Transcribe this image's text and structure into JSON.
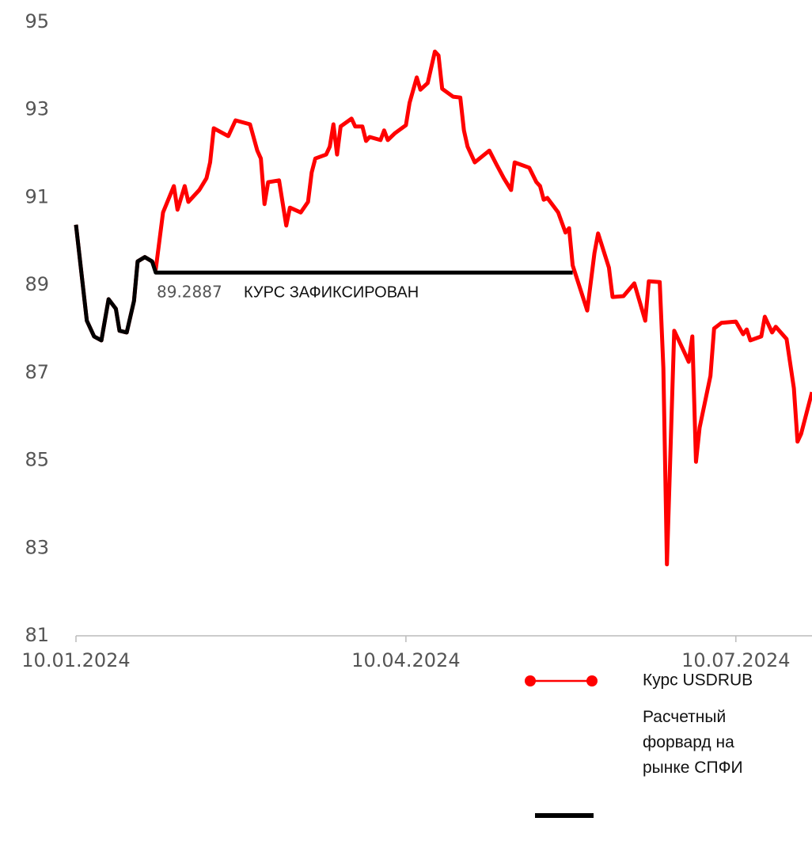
{
  "chart_data": {
    "type": "line",
    "x": [
      "2024-01-10",
      "2024-01-13",
      "2024-01-15",
      "2024-01-17",
      "2024-01-19",
      "2024-01-21",
      "2024-01-22",
      "2024-01-24",
      "2024-01-26",
      "2024-01-27",
      "2024-01-29",
      "2024-01-31",
      "2024-02-01",
      "2024-02-03",
      "2024-02-06",
      "2024-02-07",
      "2024-02-09",
      "2024-02-10",
      "2024-02-13",
      "2024-02-15",
      "2024-02-16",
      "2024-02-17",
      "2024-02-21",
      "2024-02-23",
      "2024-02-27",
      "2024-02-29",
      "2024-03-01",
      "2024-03-02",
      "2024-03-03",
      "2024-03-06",
      "2024-03-08",
      "2024-03-09",
      "2024-03-12",
      "2024-03-14",
      "2024-03-15",
      "2024-03-16",
      "2024-03-19",
      "2024-03-20",
      "2024-03-21",
      "2024-03-22",
      "2024-03-23",
      "2024-03-26",
      "2024-03-27",
      "2024-03-29",
      "2024-03-30",
      "2024-03-31",
      "2024-04-03",
      "2024-04-04",
      "2024-04-05",
      "2024-04-07",
      "2024-04-10",
      "2024-04-11",
      "2024-04-13",
      "2024-04-14",
      "2024-04-16",
      "2024-04-18",
      "2024-04-19",
      "2024-04-20",
      "2024-04-23",
      "2024-04-25",
      "2024-04-26",
      "2024-04-27",
      "2024-04-29",
      "2024-05-03",
      "2024-05-05",
      "2024-05-07",
      "2024-05-09",
      "2024-05-10",
      "2024-05-14",
      "2024-05-16",
      "2024-05-17",
      "2024-05-18",
      "2024-05-19",
      "2024-05-22",
      "2024-05-24",
      "2024-05-25",
      "2024-05-26",
      "2024-05-30",
      "2024-06-01",
      "2024-06-02",
      "2024-06-05",
      "2024-06-06",
      "2024-06-09",
      "2024-06-12",
      "2024-06-15",
      "2024-06-16",
      "2024-06-19",
      "2024-06-20",
      "2024-06-21",
      "2024-06-23",
      "2024-06-26",
      "2024-06-27",
      "2024-06-28",
      "2024-06-29",
      "2024-06-30",
      "2024-07-03",
      "2024-07-04",
      "2024-07-06",
      "2024-07-10",
      "2024-07-12",
      "2024-07-13",
      "2024-07-14",
      "2024-07-17",
      "2024-07-18",
      "2024-07-20",
      "2024-07-21",
      "2024-07-24",
      "2024-07-26",
      "2024-07-27",
      "2024-07-28",
      "2024-07-31"
    ],
    "series": [
      {
        "name": "Курс USDRUB",
        "color": "#ff0000",
        "values": [
          90.38,
          88.19,
          87.83,
          87.74,
          88.68,
          88.46,
          87.96,
          87.92,
          88.64,
          89.54,
          89.64,
          89.54,
          89.36,
          90.66,
          91.26,
          90.72,
          91.26,
          90.9,
          91.17,
          91.44,
          91.8,
          92.58,
          92.4,
          92.76,
          92.67,
          92.07,
          91.89,
          90.85,
          91.35,
          91.39,
          90.36,
          90.77,
          90.66,
          90.9,
          91.57,
          91.89,
          91.98,
          92.16,
          92.67,
          91.98,
          92.62,
          92.8,
          92.62,
          92.62,
          92.29,
          92.38,
          92.31,
          92.53,
          92.31,
          92.47,
          92.65,
          93.16,
          93.74,
          93.46,
          93.61,
          94.33,
          94.24,
          93.48,
          93.3,
          93.28,
          92.53,
          92.16,
          91.8,
          92.07,
          91.75,
          91.44,
          91.17,
          91.8,
          91.68,
          91.35,
          91.26,
          90.95,
          90.99,
          90.66,
          90.2,
          90.3,
          89.45,
          88.42,
          89.73,
          90.18,
          89.4,
          88.73,
          88.75,
          89.04,
          88.19,
          89.09,
          89.07,
          87.11,
          82.63,
          87.96,
          87.43,
          87.25,
          87.83,
          84.97,
          85.75,
          86.93,
          88.01,
          88.14,
          88.17,
          87.88,
          87.99,
          87.74,
          87.83,
          88.28,
          87.92,
          88.05,
          87.77,
          86.65,
          85.43,
          85.61,
          86.56
        ]
      },
      {
        "name": "Расчетный форвард на рынке СПФИ",
        "color": "#000000",
        "values": [
          90.38,
          88.19,
          87.83,
          87.74,
          88.68,
          88.46,
          87.96,
          87.92,
          88.64,
          89.54,
          89.64,
          89.54,
          89.2887,
          89.2887,
          89.2887,
          89.2887,
          89.2887,
          89.2887,
          89.2887,
          89.2887,
          89.2887,
          89.2887,
          89.2887,
          89.2887,
          89.2887,
          89.2887,
          89.2887,
          89.2887,
          89.2887,
          89.2887,
          89.2887,
          89.2887,
          89.2887,
          89.2887,
          89.2887,
          89.2887,
          89.2887,
          89.2887,
          89.2887,
          89.2887,
          89.2887,
          89.2887,
          89.2887,
          89.2887,
          89.2887,
          89.2887,
          89.2887,
          89.2887,
          89.2887,
          89.2887,
          89.2887,
          89.2887,
          89.2887,
          89.2887,
          89.2887,
          89.2887,
          89.2887,
          89.2887,
          89.2887,
          89.2887,
          89.2887,
          89.2887,
          89.2887,
          89.2887,
          89.2887,
          89.2887,
          89.2887,
          89.2887,
          89.2887,
          89.2887,
          89.2887,
          89.2887,
          89.2887,
          89.2887,
          89.2887,
          89.2887,
          89.2887,
          null,
          null,
          null,
          null,
          null,
          null,
          null,
          null,
          null,
          null,
          null,
          null,
          null,
          null,
          null,
          null,
          null,
          null,
          null,
          null,
          null,
          null,
          null,
          null,
          null,
          null,
          null,
          null,
          null,
          null,
          null,
          null,
          null,
          null
        ]
      }
    ],
    "annotations": [
      "89.2887",
      "КУРС ЗАФИКСИРОВАН"
    ],
    "xlim": [
      "2024-01-10",
      "2024-07-31"
    ],
    "xticks": [
      {
        "value": "2024-01-10",
        "label": "10.01.2024"
      },
      {
        "value": "2024-04-10",
        "label": "10.04.2024"
      },
      {
        "value": "2024-07-10",
        "label": "10.07.2024"
      }
    ],
    "ylim": [
      81,
      95
    ],
    "yticks": [
      81,
      83,
      85,
      87,
      89,
      91,
      93,
      95
    ],
    "grid": false
  }
}
